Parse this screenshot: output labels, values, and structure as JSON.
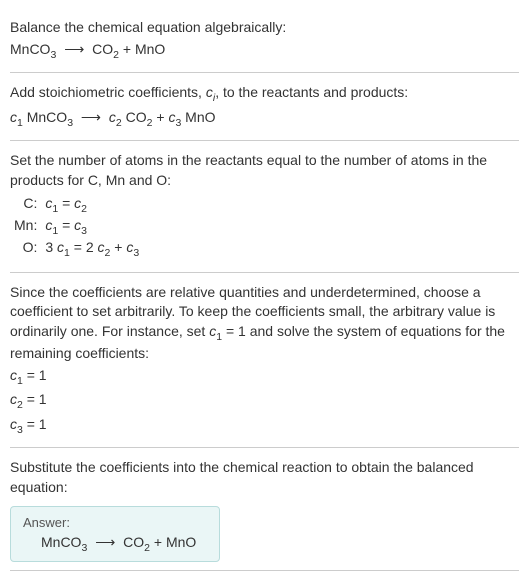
{
  "section1": {
    "title": "Balance the chemical equation algebraically:",
    "eq_lhs": "MnCO",
    "eq_lhs_sub": "3",
    "arrow": "⟶",
    "eq_rhs1": "CO",
    "eq_rhs1_sub": "2",
    "plus": " + ",
    "eq_rhs2": "MnO"
  },
  "section2": {
    "title_a": "Add stoichiometric coefficients, ",
    "ci": "c",
    "ci_sub": "i",
    "title_b": ", to the reactants and products:",
    "c1": "c",
    "c1_sub": "1",
    "sp1": " MnCO",
    "sp1_sub": "3",
    "arrow": "⟶",
    "c2": "c",
    "c2_sub": "2",
    "sp2": " CO",
    "sp2_sub": "2",
    "plus": " + ",
    "c3": "c",
    "c3_sub": "3",
    "sp3": " MnO"
  },
  "section3": {
    "title": "Set the number of atoms in the reactants equal to the number of atoms in the products for C, Mn and O:",
    "rows": [
      {
        "label": "C:",
        "lhs_c": "c",
        "lhs_sub": "1",
        "eq": " = ",
        "rhs_c": "c",
        "rhs_sub": "2",
        "extra": ""
      },
      {
        "label": "Mn:",
        "lhs_c": "c",
        "lhs_sub": "1",
        "eq": " = ",
        "rhs_c": "c",
        "rhs_sub": "3",
        "extra": ""
      },
      {
        "label": "O:",
        "lhs_pre": "3 ",
        "lhs_c": "c",
        "lhs_sub": "1",
        "eq": " = 2 ",
        "rhs_c": "c",
        "rhs_sub": "2",
        "extra_plus": " + ",
        "extra_c": "c",
        "extra_sub": "3"
      }
    ]
  },
  "section4": {
    "para_a": "Since the coefficients are relative quantities and underdetermined, choose a coefficient to set arbitrarily. To keep the coefficients small, the arbitrary value is ordinarily one. For instance, set ",
    "c1": "c",
    "c1_sub": "1",
    "para_b": " = 1 and solve the system of equations for the remaining coefficients:",
    "eqs": [
      {
        "c": "c",
        "sub": "1",
        "val": " = 1"
      },
      {
        "c": "c",
        "sub": "2",
        "val": " = 1"
      },
      {
        "c": "c",
        "sub": "3",
        "val": " = 1"
      }
    ]
  },
  "section5": {
    "title": "Substitute the coefficients into the chemical reaction to obtain the balanced equation:",
    "answer_label": "Answer:",
    "eq_lhs": "MnCO",
    "eq_lhs_sub": "3",
    "arrow": "⟶",
    "eq_rhs1": "CO",
    "eq_rhs1_sub": "2",
    "plus": " + ",
    "eq_rhs2": "MnO"
  },
  "colors": {
    "text": "#333333",
    "border": "#cccccc",
    "answer_bg": "#eaf6f6",
    "answer_border": "#b8dcdc"
  }
}
